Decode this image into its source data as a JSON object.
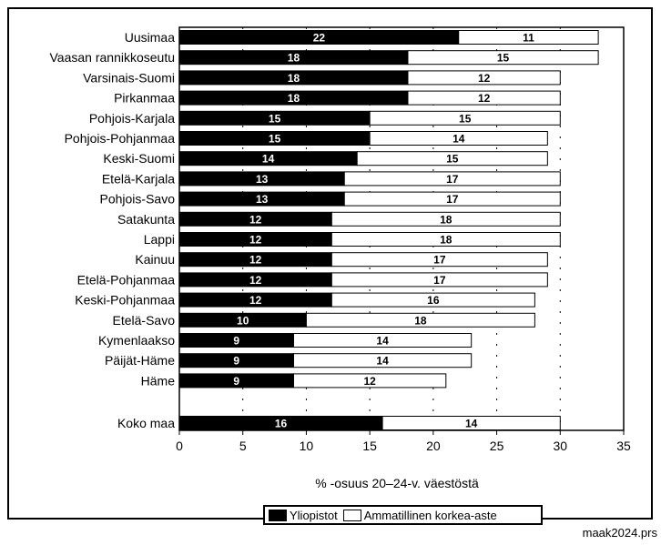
{
  "chart_data": {
    "type": "bar",
    "orientation": "horizontal",
    "stacked": true,
    "categories": [
      "Uusimaa",
      "Vaasan rannikkoseutu",
      "Varsinais-Suomi",
      "Pirkanmaa",
      "Pohjois-Karjala",
      "Pohjois-Pohjanmaa",
      "Keski-Suomi",
      "Etelä-Karjala",
      "Pohjois-Savo",
      "Satakunta",
      "Lappi",
      "Kainuu",
      "Etelä-Pohjanmaa",
      "Keski-Pohjanmaa",
      "Etelä-Savo",
      "Kymenlaakso",
      "Päijät-Häme",
      "Häme",
      "Koko maa"
    ],
    "series": [
      {
        "name": "Yliopistot",
        "values": [
          22,
          18,
          18,
          18,
          15,
          15,
          14,
          13,
          13,
          12,
          12,
          12,
          12,
          12,
          10,
          9,
          9,
          9,
          16
        ]
      },
      {
        "name": "Ammatillinen korkea-aste",
        "values": [
          11,
          15,
          12,
          12,
          15,
          14,
          15,
          17,
          17,
          18,
          18,
          17,
          17,
          16,
          18,
          14,
          14,
          12,
          14
        ]
      }
    ],
    "xlabel": "% -osuus 20–24-v. väestöstä",
    "xlim": [
      0,
      35
    ],
    "xticks": [
      0,
      5,
      10,
      15,
      20,
      25,
      30,
      35
    ],
    "grid": "vertical dotted",
    "legend_position": "bottom",
    "colors": {
      "Yliopistot": "#000000",
      "Ammatillinen korkea-aste": "#ffffff"
    }
  },
  "footer": {
    "file_label": "maak2024.prs"
  }
}
